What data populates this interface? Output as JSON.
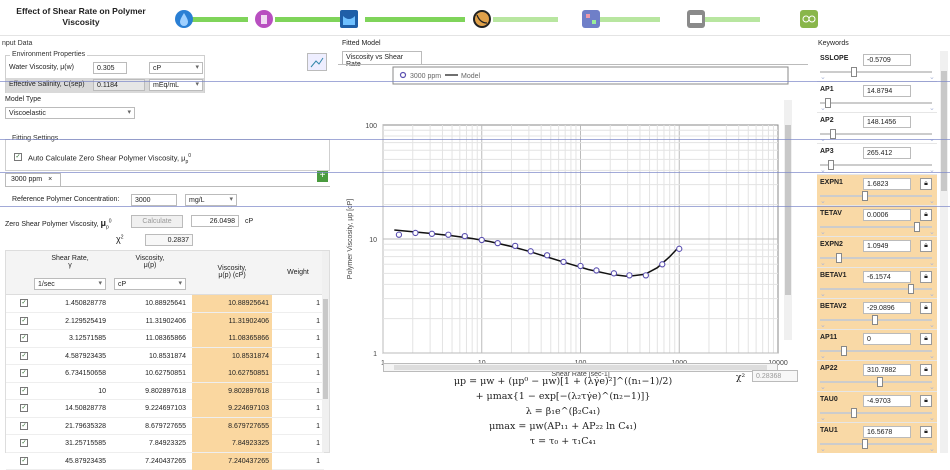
{
  "header": {
    "title": "Effect of Shear Rate on Polymer Viscosity",
    "steps": [
      {
        "icon": "water-drop-icon",
        "color": "#2a7fd4"
      },
      {
        "icon": "beaker-icon",
        "color": "#b84fc0"
      },
      {
        "icon": "tank-icon",
        "color": "#1f5fa8"
      },
      {
        "icon": "graph-icon",
        "color": "#e0a14a"
      },
      {
        "icon": "grid-icon",
        "color": "#6f7fc8"
      },
      {
        "icon": "table-icon",
        "color": "#8a8a8a"
      },
      {
        "icon": "link-icon",
        "color": "#89b64a"
      }
    ]
  },
  "left": {
    "section_label": "nput Data",
    "env": {
      "label": "Environment Properties",
      "water_label": "Water Viscosity, μ(w)",
      "water_value": "0.305",
      "water_unit": "cP",
      "salinity_label": "Effective Salinity, C(sep)",
      "salinity_value": "0.1184",
      "salinity_unit": "mEq/mL"
    },
    "model_type": {
      "label": "Model Type",
      "value": "Viscoelastic"
    },
    "fitting": {
      "label": "Fitting Settings",
      "auto_calc": "Auto Calculate Zero Shear Polymer Viscosity, μ",
      "auto_calc_sup": "0",
      "auto_calc_sub": "p"
    },
    "tab": {
      "label": "3000 ppm",
      "close": "×"
    },
    "ref_conc": {
      "label": "Reference Polymer Concentration:",
      "value": "3000",
      "unit": "mg/L"
    },
    "zero_shear": {
      "label": "Zero Shear Polymer Viscosity,",
      "symbol": "μ",
      "sup": "0",
      "sub": "p",
      "button": "Calculate",
      "value": "26.0498",
      "unit": "cP"
    },
    "chi": {
      "symbol": "χ",
      "sup": "2",
      "value": "0.2837"
    },
    "table": {
      "headers": [
        "Shear Rate,",
        "γ",
        "Viscosity,",
        "μ(p)",
        "Viscosity,",
        "μ(p) (cP)",
        "Weight"
      ],
      "units": [
        "1/sec",
        "cP"
      ],
      "rows": [
        [
          "1.450828778",
          "10.88925641",
          "10.88925641",
          "1"
        ],
        [
          "2.129525419",
          "11.31902406",
          "11.31902406",
          "1"
        ],
        [
          "3.12571585",
          "11.08365866",
          "11.08365866",
          "1"
        ],
        [
          "4.587923435",
          "10.8531874",
          "10.8531874",
          "1"
        ],
        [
          "6.734150658",
          "10.62750851",
          "10.62750851",
          "1"
        ],
        [
          "10",
          "9.802897618",
          "9.802897618",
          "1"
        ],
        [
          "14.50828778",
          "9.224697103",
          "9.224697103",
          "1"
        ],
        [
          "21.79635328",
          "8.679727655",
          "8.679727655",
          "1"
        ],
        [
          "31.25715585",
          "7.84923325",
          "7.84923325",
          "1"
        ],
        [
          "45.87923435",
          "7.240437265",
          "7.240437265",
          "1"
        ]
      ]
    }
  },
  "mid": {
    "section_label": "Fitted Model",
    "tab": "Viscosity vs Shear Rate",
    "legend": [
      "3000 ppm",
      "Model"
    ],
    "chi_label": "χ²",
    "chi_value": "0.28368",
    "equations": [
      "μp = μw + (μp⁰ − μw)[1 + (λγ̇e)²]^((n₁−1)/2)",
      "+ μmax{1 − exp[−(λ₂τγ̇e)^(n₂−1)]}",
      "λ = β₁e^(β₂C₄₁)",
      "μmax = μw(AP₁₁ + AP₂₂ ln C₄₁)",
      "τ = τ₀ + τ₁C₄₁"
    ]
  },
  "chart_data": {
    "type": "scatter",
    "xlabel": "Shear Rate [sec-1]",
    "ylabel": "Polymer Viscosity, μp [cP]",
    "xscale": "log",
    "yscale": "log",
    "xlim": [
      1,
      10000
    ],
    "ylim": [
      1,
      100
    ],
    "xticks": [
      "1",
      "10",
      "100",
      "1000",
      "10000"
    ],
    "yticks": [
      "1",
      "10",
      "100"
    ],
    "legend_placement": "top",
    "grid": true,
    "series": [
      {
        "name": "3000 ppm",
        "kind": "points",
        "color": "#5a4fb0",
        "x": [
          1.45,
          2.13,
          3.13,
          4.59,
          6.73,
          10,
          14.5,
          21.8,
          31.3,
          45.9,
          67.3,
          100,
          145,
          218,
          313,
          459,
          673,
          1000
        ],
        "y": [
          10.9,
          11.3,
          11.1,
          10.9,
          10.6,
          9.8,
          9.2,
          8.7,
          7.8,
          7.2,
          6.3,
          5.8,
          5.3,
          5.0,
          4.8,
          4.8,
          6.0,
          8.2
        ]
      },
      {
        "name": "Model",
        "kind": "line",
        "color": "#111111",
        "x": [
          1.3,
          2,
          3,
          5,
          8,
          12,
          20,
          30,
          50,
          80,
          120,
          200,
          300,
          450,
          600,
          800,
          1000
        ],
        "y": [
          12.0,
          11.6,
          11.2,
          10.7,
          10.1,
          9.5,
          8.6,
          7.8,
          6.8,
          6.0,
          5.4,
          4.9,
          4.7,
          4.9,
          5.6,
          7.0,
          8.6
        ]
      }
    ]
  },
  "right": {
    "section_label": "Keywords",
    "items": [
      {
        "name": "SSLOPE",
        "value": "-0.5709",
        "lock": false,
        "level": 0.3,
        "highlight": false
      },
      {
        "name": "AP1",
        "value": "14.8794",
        "lock": false,
        "level": 0.05,
        "highlight": false
      },
      {
        "name": "AP2",
        "value": "148.1456",
        "lock": false,
        "level": 0.1,
        "highlight": false
      },
      {
        "name": "AP3",
        "value": "265.412",
        "lock": false,
        "level": 0.08,
        "highlight": false
      },
      {
        "name": "EXPN1",
        "value": "1.6823",
        "lock": true,
        "level": 0.4,
        "highlight": true
      },
      {
        "name": "TETAV",
        "value": "0.0006",
        "lock": true,
        "level": 0.9,
        "highlight": true
      },
      {
        "name": "EXPN2",
        "value": "1.0949",
        "lock": true,
        "level": 0.15,
        "highlight": true
      },
      {
        "name": "BETAV1",
        "value": "-6.1574",
        "lock": true,
        "level": 0.85,
        "highlight": true
      },
      {
        "name": "BETAV2",
        "value": "-29.0896",
        "lock": true,
        "level": 0.5,
        "highlight": true
      },
      {
        "name": "AP11",
        "value": "0",
        "lock": true,
        "level": 0.2,
        "highlight": true
      },
      {
        "name": "AP22",
        "value": "310.7882",
        "lock": true,
        "level": 0.55,
        "highlight": true
      },
      {
        "name": "TAU0",
        "value": "-4.9703",
        "lock": true,
        "level": 0.3,
        "highlight": true
      },
      {
        "name": "TAU1",
        "value": "16.5678",
        "lock": true,
        "level": 0.4,
        "highlight": true
      }
    ]
  }
}
